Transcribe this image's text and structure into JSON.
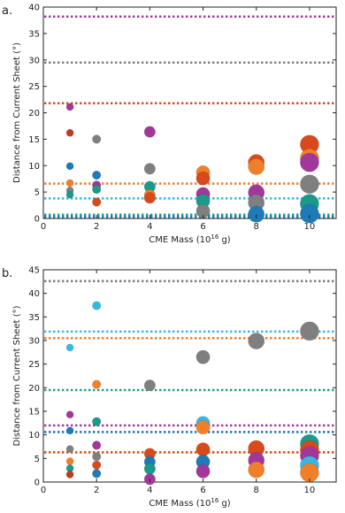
{
  "chart_data": [
    {
      "panel_label": "a.",
      "type": "scatter",
      "xlabel": "CME Mass (10",
      "xlabel_sup": "16",
      "xlabel_suffix": " g)",
      "ylabel": "Distance from Current Sheet (°)",
      "xlim": [
        0,
        11
      ],
      "ylim": [
        0,
        40
      ],
      "xticks": [
        0,
        2,
        4,
        6,
        8,
        10
      ],
      "yticks": [
        0,
        5,
        10,
        15,
        20,
        25,
        30,
        35,
        40
      ],
      "hlines": [
        {
          "y": 38.2,
          "color": "#a2379b"
        },
        {
          "y": 29.5,
          "color": "#7f7f7f"
        },
        {
          "y": 21.8,
          "color": "#d84a1b"
        },
        {
          "y": 6.6,
          "color": "#f07f2a"
        },
        {
          "y": 3.8,
          "color": "#36b8e3"
        },
        {
          "y": 0.7,
          "color": "#1a9a8a"
        },
        {
          "y": 0.3,
          "color": "#1f7ab8"
        }
      ],
      "points": [
        {
          "x": 1,
          "y": 21.1,
          "m": 1,
          "color": "#a2379b"
        },
        {
          "x": 1,
          "y": 16.2,
          "m": 1,
          "color": "#c03a20"
        },
        {
          "x": 1,
          "y": 9.9,
          "m": 1,
          "color": "#1f7ab8"
        },
        {
          "x": 1,
          "y": 6.7,
          "m": 1,
          "color": "#f07f2a"
        },
        {
          "x": 1,
          "y": 5.3,
          "m": 1,
          "color": "#7f7f7f"
        },
        {
          "x": 1,
          "y": 4.5,
          "m": 1,
          "color": "#1a9a8a"
        },
        {
          "x": 2,
          "y": 15.0,
          "m": 2,
          "color": "#7f7f7f"
        },
        {
          "x": 2,
          "y": 8.2,
          "m": 2,
          "color": "#1f7ab8"
        },
        {
          "x": 2,
          "y": 6.3,
          "m": 2,
          "color": "#a2379b"
        },
        {
          "x": 2,
          "y": 5.5,
          "m": 2,
          "color": "#1a9a8a"
        },
        {
          "x": 2,
          "y": 3.1,
          "m": 2,
          "color": "#d84a1b"
        },
        {
          "x": 4,
          "y": 16.4,
          "m": 4,
          "color": "#a2379b"
        },
        {
          "x": 4,
          "y": 9.4,
          "m": 4,
          "color": "#7f7f7f"
        },
        {
          "x": 4,
          "y": 6.0,
          "m": 4,
          "color": "#1a9a8a"
        },
        {
          "x": 4,
          "y": 4.4,
          "m": 4,
          "color": "#f07f2a"
        },
        {
          "x": 4,
          "y": 3.9,
          "m": 4,
          "color": "#d84a1b"
        },
        {
          "x": 6,
          "y": 8.7,
          "m": 6,
          "color": "#f07f2a"
        },
        {
          "x": 6,
          "y": 7.6,
          "m": 6,
          "color": "#d84a1b"
        },
        {
          "x": 6,
          "y": 4.6,
          "m": 6,
          "color": "#a2379b"
        },
        {
          "x": 6,
          "y": 3.3,
          "m": 6,
          "color": "#1a9a8a"
        },
        {
          "x": 6,
          "y": 1.4,
          "m": 6,
          "color": "#7f7f7f"
        },
        {
          "x": 8,
          "y": 10.6,
          "m": 8,
          "color": "#d84a1b"
        },
        {
          "x": 8,
          "y": 9.8,
          "m": 8,
          "color": "#f07f2a"
        },
        {
          "x": 8,
          "y": 4.9,
          "m": 8,
          "color": "#a2379b"
        },
        {
          "x": 8,
          "y": 3.0,
          "m": 8,
          "color": "#7f7f7f"
        },
        {
          "x": 8,
          "y": 0.8,
          "m": 8,
          "color": "#1f7ab8"
        },
        {
          "x": 10,
          "y": 14.0,
          "m": 10,
          "color": "#d84a1b"
        },
        {
          "x": 10,
          "y": 11.4,
          "m": 10,
          "color": "#f07f2a"
        },
        {
          "x": 10,
          "y": 10.6,
          "m": 10,
          "color": "#a2379b"
        },
        {
          "x": 10,
          "y": 6.5,
          "m": 10,
          "color": "#7f7f7f"
        },
        {
          "x": 10,
          "y": 2.8,
          "m": 10,
          "color": "#1a9a8a"
        },
        {
          "x": 10,
          "y": 0.9,
          "m": 10,
          "color": "#1f7ab8"
        }
      ]
    },
    {
      "panel_label": "b.",
      "type": "scatter",
      "xlabel": "CME Mass (10",
      "xlabel_sup": "16",
      "xlabel_suffix": " g)",
      "ylabel": "Distance from Current Sheet (°)",
      "xlim": [
        0,
        11
      ],
      "ylim": [
        0,
        45
      ],
      "xticks": [
        0,
        2,
        4,
        6,
        8,
        10
      ],
      "yticks": [
        0,
        5,
        10,
        15,
        20,
        25,
        30,
        35,
        40,
        45
      ],
      "hlines": [
        {
          "y": 42.6,
          "color": "#7f7f7f"
        },
        {
          "y": 31.9,
          "color": "#36b8e3"
        },
        {
          "y": 30.5,
          "color": "#f07f2a"
        },
        {
          "y": 19.5,
          "color": "#1a9a8a"
        },
        {
          "y": 12.0,
          "color": "#a2379b"
        },
        {
          "y": 10.6,
          "color": "#1f7ab8"
        },
        {
          "y": 6.3,
          "color": "#d84a1b"
        }
      ],
      "points": [
        {
          "x": 1,
          "y": 28.5,
          "m": 1,
          "color": "#36b8e3"
        },
        {
          "x": 1,
          "y": 14.3,
          "m": 1,
          "color": "#a2379b"
        },
        {
          "x": 1,
          "y": 10.9,
          "m": 1,
          "color": "#1f7ab8"
        },
        {
          "x": 1,
          "y": 7.0,
          "m": 1,
          "color": "#7f7f7f"
        },
        {
          "x": 1,
          "y": 4.4,
          "m": 1,
          "color": "#f07f2a"
        },
        {
          "x": 1,
          "y": 2.9,
          "m": 1,
          "color": "#1a9a8a"
        },
        {
          "x": 1,
          "y": 1.6,
          "m": 1,
          "color": "#c03a20"
        },
        {
          "x": 2,
          "y": 37.4,
          "m": 2,
          "color": "#36b8e3"
        },
        {
          "x": 2,
          "y": 20.7,
          "m": 2,
          "color": "#f07f2a"
        },
        {
          "x": 2,
          "y": 12.8,
          "m": 2,
          "color": "#1a9a8a"
        },
        {
          "x": 2,
          "y": 7.8,
          "m": 2,
          "color": "#a2379b"
        },
        {
          "x": 2,
          "y": 5.4,
          "m": 2,
          "color": "#7f7f7f"
        },
        {
          "x": 2,
          "y": 3.6,
          "m": 2,
          "color": "#d84a1b"
        },
        {
          "x": 2,
          "y": 1.8,
          "m": 2,
          "color": "#1f7ab8"
        },
        {
          "x": 4,
          "y": 20.5,
          "m": 4,
          "color": "#7f7f7f"
        },
        {
          "x": 4,
          "y": 6.0,
          "m": 4,
          "color": "#d84a1b"
        },
        {
          "x": 4,
          "y": 4.3,
          "m": 4,
          "color": "#1f7ab8"
        },
        {
          "x": 4,
          "y": 2.8,
          "m": 4,
          "color": "#1a9a8a"
        },
        {
          "x": 4,
          "y": 0.6,
          "m": 4,
          "color": "#a2379b"
        },
        {
          "x": 6,
          "y": 26.5,
          "m": 6,
          "color": "#7f7f7f"
        },
        {
          "x": 6,
          "y": 12.5,
          "m": 6,
          "color": "#36b8e3"
        },
        {
          "x": 6,
          "y": 11.6,
          "m": 6,
          "color": "#f07f2a"
        },
        {
          "x": 6,
          "y": 6.9,
          "m": 6,
          "color": "#d84a1b"
        },
        {
          "x": 6,
          "y": 4.3,
          "m": 6,
          "color": "#1f7ab8"
        },
        {
          "x": 6,
          "y": 2.3,
          "m": 6,
          "color": "#a2379b"
        },
        {
          "x": 8,
          "y": 29.9,
          "m": 8,
          "color": "#7f7f7f"
        },
        {
          "x": 8,
          "y": 7.1,
          "m": 8,
          "color": "#d84a1b"
        },
        {
          "x": 8,
          "y": 4.6,
          "m": 8,
          "color": "#a2379b"
        },
        {
          "x": 8,
          "y": 2.6,
          "m": 8,
          "color": "#f07f2a"
        },
        {
          "x": 10,
          "y": 32.0,
          "m": 10,
          "color": "#7f7f7f"
        },
        {
          "x": 10,
          "y": 8.1,
          "m": 10,
          "color": "#1a9a8a"
        },
        {
          "x": 10,
          "y": 6.8,
          "m": 10,
          "color": "#d84a1b"
        },
        {
          "x": 10,
          "y": 5.6,
          "m": 10,
          "color": "#a2379b"
        },
        {
          "x": 10,
          "y": 3.5,
          "m": 10,
          "color": "#36b8e3"
        },
        {
          "x": 10,
          "y": 2.0,
          "m": 10,
          "color": "#f07f2a"
        }
      ]
    }
  ]
}
